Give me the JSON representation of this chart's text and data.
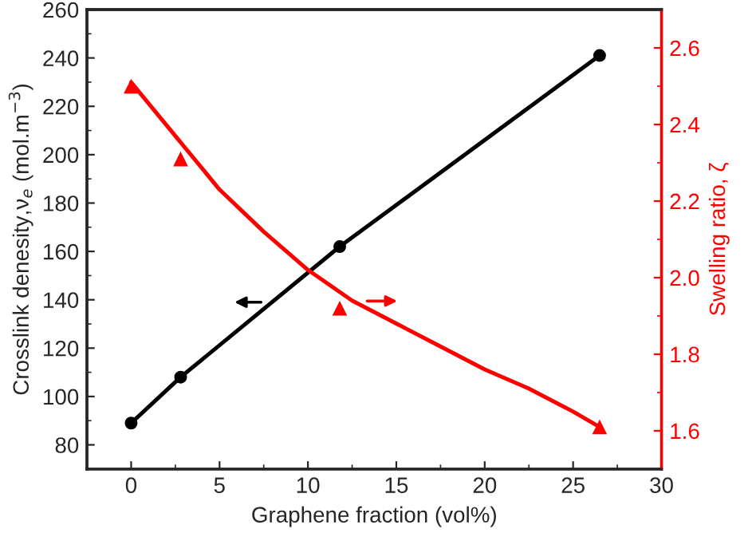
{
  "chart_data": {
    "type": "line",
    "xlabel": "Graphene fraction (vol%)",
    "ylabel": "Crosslink denesity,ν$_{e}$ (mol.m$^{−3}$)",
    "y2label": "Swelling ratio, ζ",
    "xlim": [
      -2.5,
      30
    ],
    "xticks": [
      0,
      5,
      10,
      15,
      20,
      25,
      30
    ],
    "ylim": [
      70,
      260
    ],
    "yticks": [
      80,
      100,
      120,
      140,
      160,
      180,
      200,
      220,
      240,
      260
    ],
    "y2lim": [
      1.5,
      2.7
    ],
    "y2ticks": [
      1.6,
      1.8,
      {
        "value": 2.0,
        "label": "2.0"
      },
      2.2,
      2.4,
      2.6
    ],
    "grid": false,
    "legend": false,
    "series": [
      {
        "color": "#000000",
        "marker": "circle",
        "x": [
          0,
          2.8,
          11.8,
          26.5
        ],
        "values": [
          89,
          108,
          162,
          241
        ]
      },
      {
        "type": "scatter",
        "axis": "y2",
        "color": "#ff0000",
        "marker": "triangle",
        "x": [
          0,
          2.8,
          11.8,
          26.5
        ],
        "values": [
          2.5,
          2.31,
          1.92,
          1.61
        ]
      },
      {
        "type": "line",
        "axis": "y2",
        "color": "#ff0000",
        "marker": "none",
        "x": [
          0,
          2.5,
          5,
          7.5,
          10,
          12.5,
          15,
          17.5,
          20,
          22.5,
          25,
          26.5
        ],
        "values": [
          2.51,
          2.37,
          2.23,
          2.12,
          2.02,
          1.94,
          1.88,
          1.82,
          1.76,
          1.71,
          1.65,
          1.61
        ]
      }
    ]
  }
}
